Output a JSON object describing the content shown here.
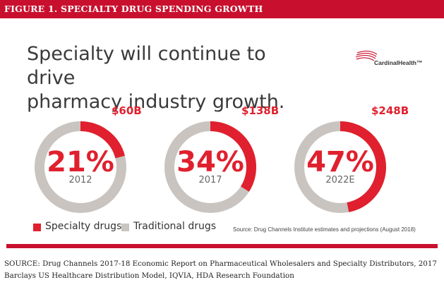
{
  "header": {
    "title": "FIGURE 1. SPECIALTY DRUG SPENDING GROWTH"
  },
  "headline": {
    "line1": "Specialty will continue to drive",
    "line2": "pharmacy industry growth."
  },
  "logo": {
    "text": "CardinalHealth™"
  },
  "colors": {
    "specialty": "#e0202e",
    "traditional": "#c9c4bf",
    "brand": "#c8102e",
    "text": "#3a3a3a"
  },
  "chart_data": {
    "type": "pie",
    "title": "Specialty will continue to drive pharmacy industry growth.",
    "series_names": [
      "Specialty drugs",
      "Traditional drugs"
    ],
    "categories": [
      "2012",
      "2017",
      "2022E"
    ],
    "specialty_share_pct": [
      21,
      34,
      47
    ],
    "specialty_share_labels": [
      "21%",
      "34%",
      "47%"
    ],
    "specialty_spending_labels": [
      "$60B",
      "$138B",
      "$248B"
    ],
    "legend": [
      {
        "label": "Specialty drugs",
        "color": "#e0202e"
      },
      {
        "label": "Traditional drugs",
        "color": "#c9c4bf"
      }
    ],
    "source_note": "Source: Drug Channels Institute estimates and projections (August 2018)"
  },
  "footer": {
    "source": "SOURCE: Drug Channels 2017-18 Economic Report on Pharmaceutical Wholesalers and Specialty Distributors, 2017 Barclays US Healthcare Distribution Model, IQVIA, HDA Research Foundation"
  }
}
